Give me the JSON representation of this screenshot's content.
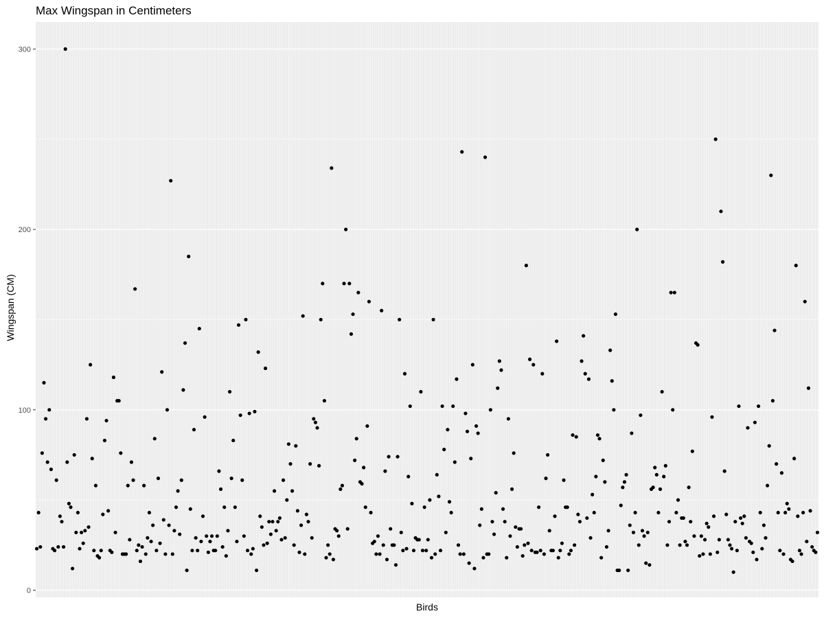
{
  "chart_data": {
    "type": "scatter",
    "title": "Max Wingspan in Centimeters",
    "xlabel": "Birds",
    "ylabel": "Wingspan (CM)",
    "ylim": [
      -4,
      315
    ],
    "yticks": [
      0,
      100,
      200,
      300
    ],
    "grid": true,
    "point_color": "#000000",
    "panel_color": "#EBEBEB",
    "values": [
      23,
      43,
      24,
      76,
      115,
      95,
      71,
      100,
      67,
      23,
      22,
      61,
      24,
      41,
      38,
      24,
      300,
      71,
      48,
      46,
      12,
      75,
      32,
      43,
      23,
      32,
      26,
      33,
      95,
      35,
      125,
      73,
      22,
      58,
      19,
      18,
      22,
      42,
      83,
      94,
      44,
      22,
      21,
      118,
      32,
      105,
      105,
      76,
      20,
      20,
      20,
      58,
      28,
      71,
      61,
      167,
      22,
      25,
      16,
      24,
      58,
      20,
      29,
      43,
      27,
      36,
      84,
      22,
      62,
      26,
      121,
      39,
      20,
      100,
      36,
      227,
      20,
      33,
      46,
      55,
      31,
      61,
      111,
      137,
      11,
      185,
      45,
      22,
      89,
      29,
      22,
      145,
      27,
      41,
      96,
      30,
      21,
      27,
      30,
      22,
      22,
      30,
      66,
      56,
      24,
      46,
      19,
      33,
      110,
      62,
      83,
      46,
      27,
      147,
      97,
      61,
      30,
      150,
      22,
      98,
      20,
      23,
      99,
      11,
      132,
      41,
      35,
      25,
      123,
      26,
      38,
      31,
      38,
      55,
      33,
      38,
      40,
      28,
      61,
      29,
      50,
      81,
      70,
      55,
      25,
      80,
      44,
      21,
      36,
      152,
      20,
      42,
      38,
      70,
      29,
      95,
      93,
      90,
      69,
      150,
      170,
      105,
      18,
      25,
      20,
      234,
      17,
      34,
      33,
      30,
      56,
      58,
      170,
      200,
      34,
      170,
      142,
      153,
      72,
      84,
      165,
      60,
      59,
      68,
      46,
      91,
      160,
      43,
      26,
      27,
      20,
      30,
      20,
      155,
      25,
      66,
      17,
      74,
      34,
      25,
      25,
      14,
      74,
      150,
      32,
      22,
      120,
      23,
      63,
      102,
      48,
      22,
      29,
      28,
      28,
      110,
      22,
      46,
      22,
      28,
      50,
      18,
      150,
      20,
      64,
      52,
      22,
      102,
      78,
      32,
      89,
      49,
      43,
      102,
      71,
      117,
      25,
      20,
      243,
      20,
      98,
      88,
      15,
      73,
      125,
      12,
      91,
      87,
      36,
      45,
      18,
      240,
      20,
      20,
      100,
      38,
      31,
      54,
      112,
      127,
      122,
      45,
      38,
      18,
      95,
      30,
      56,
      76,
      35,
      24,
      34,
      34,
      19,
      25,
      180,
      26,
      128,
      22,
      125,
      21,
      21,
      46,
      22,
      120,
      20,
      62,
      75,
      33,
      22,
      22,
      41,
      138,
      18,
      22,
      26,
      61,
      46,
      46,
      20,
      22,
      86,
      25,
      85,
      42,
      38,
      127,
      141,
      120,
      40,
      117,
      29,
      53,
      43,
      63,
      86,
      84,
      18,
      72,
      60,
      24,
      33,
      133,
      116,
      100,
      153,
      11,
      11,
      47,
      57,
      60,
      64,
      11,
      36,
      87,
      32,
      43,
      200,
      25,
      97,
      33,
      30,
      15,
      32,
      14,
      56,
      57,
      68,
      64,
      43,
      56,
      110,
      63,
      69,
      25,
      38,
      165,
      100,
      165,
      43,
      50,
      25,
      40,
      40,
      27,
      25,
      57,
      38,
      77,
      30,
      137,
      136,
      19,
      30,
      20,
      28,
      37,
      35,
      20,
      96,
      41,
      250,
      21,
      28,
      210,
      182,
      66,
      42,
      28,
      25,
      23,
      10,
      38,
      22,
      102,
      40,
      37,
      41,
      29,
      90,
      27,
      26,
      21,
      93,
      17,
      102,
      43,
      23,
      36,
      29,
      58,
      80,
      230,
      105,
      144,
      70,
      43,
      22,
      65,
      20,
      43,
      48,
      45,
      17,
      16,
      73,
      180,
      41,
      22,
      20,
      43,
      160,
      27,
      112,
      44,
      24,
      22,
      21,
      32
    ]
  }
}
